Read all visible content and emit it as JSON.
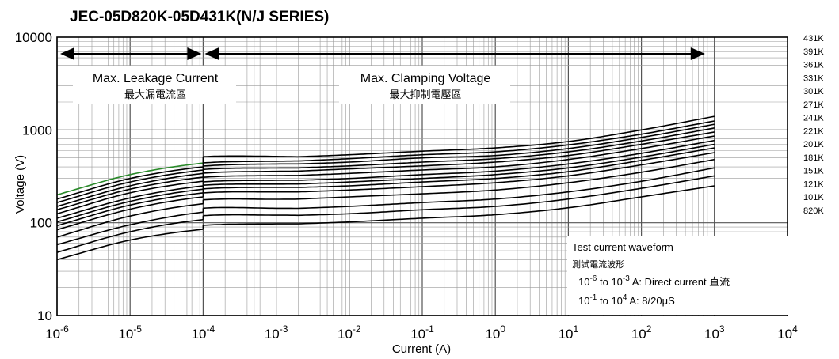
{
  "chart_data": {
    "type": "line",
    "title": "JEC-05D820K-05D431K(N/J SERIES)",
    "xlabel": "Current (A)",
    "ylabel": "Voltage (V)",
    "x_scale": "log",
    "y_scale": "log",
    "xlim": [
      1e-06,
      10000.0
    ],
    "ylim": [
      10,
      10000
    ],
    "grid": true,
    "x_ticks": [
      {
        "base": "10",
        "exp": "-6"
      },
      {
        "base": "10",
        "exp": "-5"
      },
      {
        "base": "10",
        "exp": "-4"
      },
      {
        "base": "10",
        "exp": "-3"
      },
      {
        "base": "10",
        "exp": "-2"
      },
      {
        "base": "10",
        "exp": "-1"
      },
      {
        "base": "10",
        "exp": "0"
      },
      {
        "base": "10",
        "exp": "1"
      },
      {
        "base": "10",
        "exp": "2"
      },
      {
        "base": "10",
        "exp": "3"
      },
      {
        "base": "10",
        "exp": "4"
      }
    ],
    "y_ticks": [
      "10000",
      "1000",
      "100",
      "10"
    ],
    "series": [
      {
        "name": "431K",
        "x": [
          1e-06,
          1e-05,
          0.0001,
          0.001,
          0.01,
          0.1,
          1,
          10,
          100,
          1000
        ],
        "y": [
          200,
          330,
          440,
          500,
          540,
          590,
          640,
          750,
          1000,
          1400
        ]
      },
      {
        "name": "391K",
        "x": [
          1e-06,
          1e-05,
          0.0001,
          0.001,
          0.01,
          0.1,
          1,
          10,
          100,
          1000
        ],
        "y": [
          180,
          300,
          400,
          450,
          490,
          540,
          580,
          690,
          900,
          1250
        ]
      },
      {
        "name": "361K",
        "x": [
          1e-06,
          1e-05,
          0.0001,
          0.001,
          0.01,
          0.1,
          1,
          10,
          100,
          1000
        ],
        "y": [
          165,
          275,
          370,
          420,
          450,
          500,
          530,
          630,
          830,
          1150
        ]
      },
      {
        "name": "331K",
        "x": [
          1e-06,
          1e-05,
          0.0001,
          0.001,
          0.01,
          0.1,
          1,
          10,
          100,
          1000
        ],
        "y": [
          150,
          250,
          340,
          380,
          410,
          450,
          490,
          580,
          760,
          1050
        ]
      },
      {
        "name": "301K",
        "x": [
          1e-06,
          1e-05,
          0.0001,
          0.001,
          0.01,
          0.1,
          1,
          10,
          100,
          1000
        ],
        "y": [
          138,
          230,
          310,
          350,
          380,
          410,
          450,
          530,
          700,
          950
        ]
      },
      {
        "name": "271K",
        "x": [
          1e-06,
          1e-05,
          0.0001,
          0.001,
          0.01,
          0.1,
          1,
          10,
          100,
          1000
        ],
        "y": [
          125,
          210,
          280,
          315,
          340,
          370,
          400,
          480,
          630,
          860
        ]
      },
      {
        "name": "241K",
        "x": [
          1e-06,
          1e-05,
          0.0001,
          0.001,
          0.01,
          0.1,
          1,
          10,
          100,
          1000
        ],
        "y": [
          112,
          185,
          250,
          280,
          300,
          330,
          360,
          430,
          560,
          770
        ]
      },
      {
        "name": "221K",
        "x": [
          1e-06,
          1e-05,
          0.0001,
          0.001,
          0.01,
          0.1,
          1,
          10,
          100,
          1000
        ],
        "y": [
          102,
          170,
          230,
          255,
          275,
          300,
          330,
          390,
          510,
          700
        ]
      },
      {
        "name": "201K",
        "x": [
          1e-06,
          1e-05,
          0.0001,
          0.001,
          0.01,
          0.1,
          1,
          10,
          100,
          1000
        ],
        "y": [
          93,
          155,
          210,
          235,
          250,
          275,
          300,
          355,
          470,
          640
        ]
      },
      {
        "name": "181K",
        "x": [
          1e-06,
          1e-05,
          0.0001,
          0.001,
          0.01,
          0.1,
          1,
          10,
          100,
          1000
        ],
        "y": [
          84,
          140,
          190,
          210,
          225,
          245,
          270,
          320,
          420,
          570
        ]
      },
      {
        "name": "151K",
        "x": [
          1e-06,
          1e-05,
          0.0001,
          0.001,
          0.01,
          0.1,
          1,
          10,
          100,
          1000
        ],
        "y": [
          70,
          118,
          160,
          175,
          190,
          205,
          225,
          270,
          350,
          480
        ]
      },
      {
        "name": "121K",
        "x": [
          1e-06,
          1e-05,
          0.0001,
          0.001,
          0.01,
          0.1,
          1,
          10,
          100,
          1000
        ],
        "y": [
          58,
          95,
          130,
          140,
          150,
          165,
          180,
          215,
          280,
          390
        ]
      },
      {
        "name": "101K",
        "x": [
          1e-06,
          1e-05,
          0.0001,
          0.001,
          0.01,
          0.1,
          1,
          10,
          100,
          1000
        ],
        "y": [
          48,
          80,
          108,
          118,
          125,
          138,
          150,
          180,
          235,
          320
        ]
      },
      {
        "name": "820K",
        "x": [
          1e-06,
          1e-05,
          0.0001,
          0.001,
          0.01,
          0.1,
          1,
          10,
          100,
          1000
        ],
        "y": [
          40,
          65,
          85,
          95,
          102,
          112,
          122,
          145,
          190,
          250
        ]
      }
    ],
    "annotations": {
      "leakage_en": "Max. Leakage Current",
      "leakage_zh": "最大漏電流區",
      "clamping_en": "Max. Clamping Voltage",
      "clamping_zh": "最大抑制電壓區",
      "legend_title": "Test current waveform",
      "legend_title_zh": "測試電流波形",
      "legend_line1": [
        {
          "t": "10",
          "sup": false
        },
        {
          "t": "-6",
          "sup": true
        },
        {
          "t": " to 10",
          "sup": false
        },
        {
          "t": "-3",
          "sup": true
        },
        {
          "t": " A: Direct current ",
          "sup": false
        },
        {
          "t": "直流",
          "sup": false,
          "zh": true
        }
      ],
      "legend_line2": [
        {
          "t": "10",
          "sup": false
        },
        {
          "t": "-1",
          "sup": true
        },
        {
          "t": " to 10",
          "sup": false
        },
        {
          "t": "4",
          "sup": true
        },
        {
          "t": "  A: 8/20",
          "sup": false
        },
        {
          "t": "μ",
          "sup": false
        },
        {
          "t": "S",
          "sup": false
        }
      ]
    },
    "colors": {
      "curve": "#000000",
      "grid": "#9a9a9a",
      "major_grid": "#555555",
      "highlight": "#2a8a2a"
    }
  }
}
